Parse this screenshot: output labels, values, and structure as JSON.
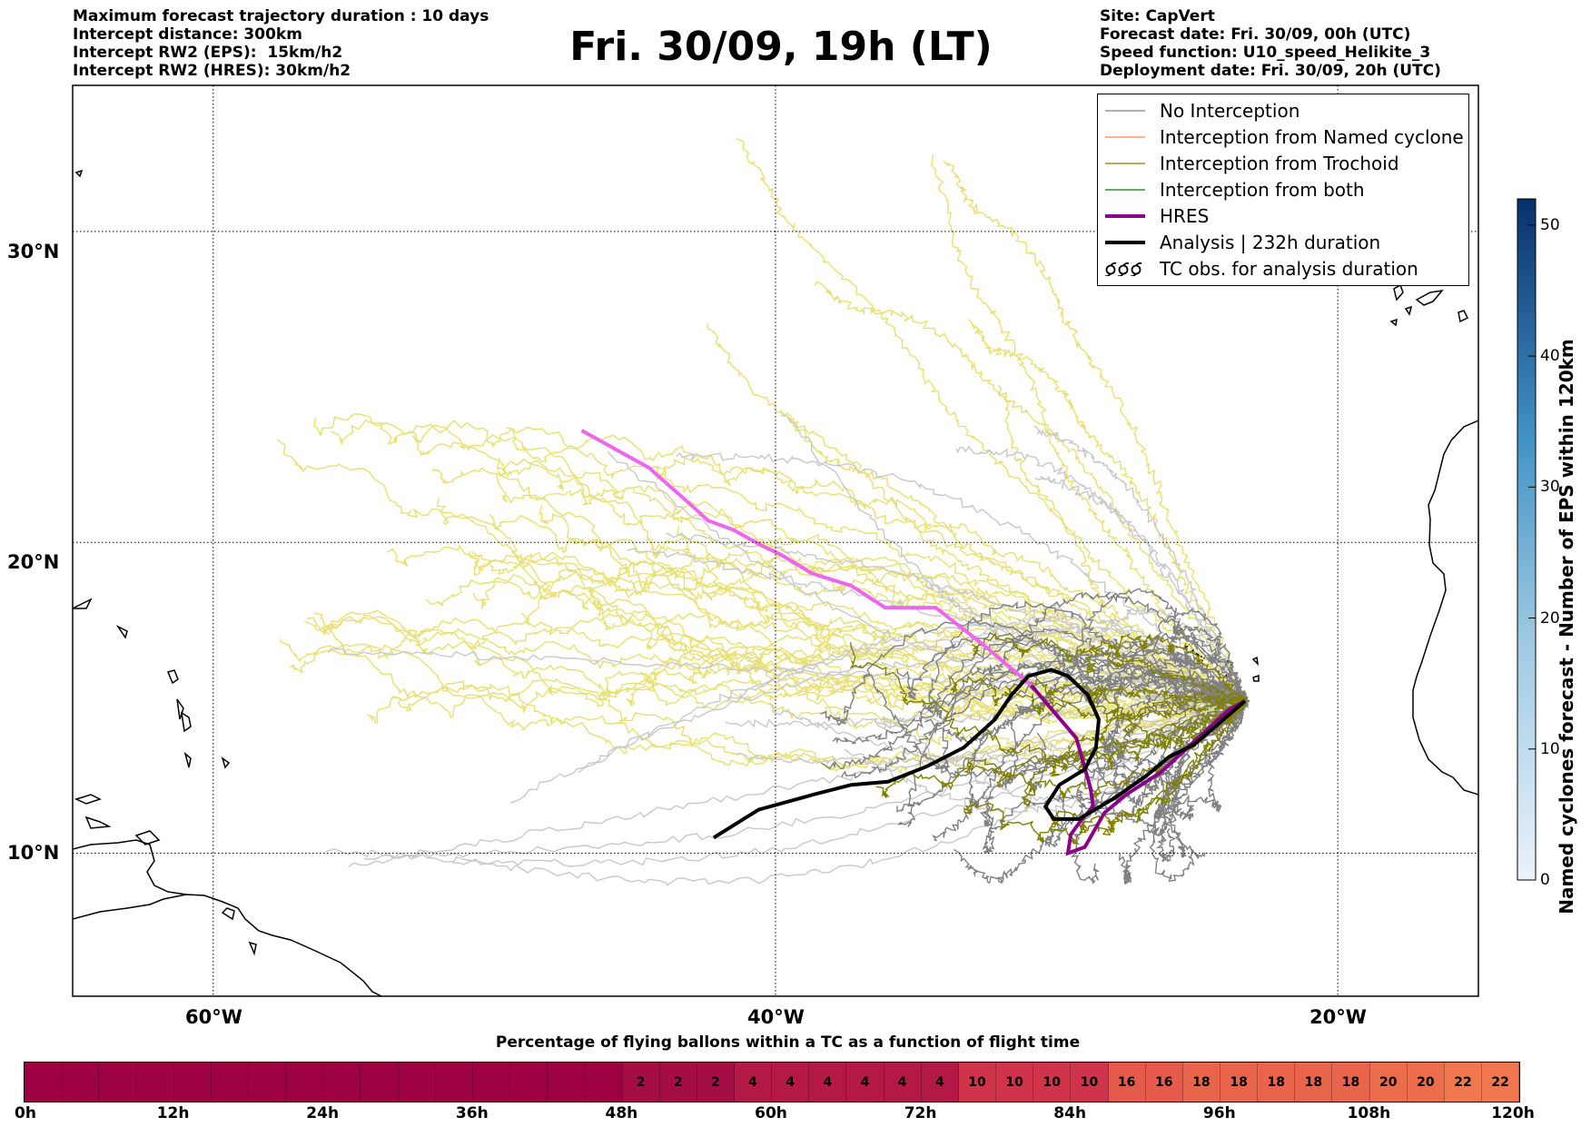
{
  "header_left": [
    "Maximum forecast trajectory duration : 10 days",
    "Intercept distance: 300km",
    "Intercept RW2 (EPS):  15km/h2",
    "Intercept RW2 (HRES): 30km/h2"
  ],
  "header_right": [
    "Site: CapVert",
    "Forecast date: Fri. 30/09, 00h (UTC)",
    "Speed function: U10_speed_Helikite_3",
    "Deployment date: Fri. 30/09, 20h (UTC)"
  ],
  "title": "Fri. 30/09, 19h (LT)",
  "map": {
    "lat_labels": [
      "30°N",
      "20°N",
      "10°N"
    ],
    "lon_labels": [
      "60°W",
      "40°W",
      "20°W"
    ],
    "lon_range": [
      -65,
      -15
    ],
    "lat_range": [
      5.4,
      34.7
    ],
    "gridlines": true,
    "site": {
      "name": "CapVert",
      "lon": -23.3,
      "lat": 14.9
    },
    "colors": {
      "no_interception": "#808080",
      "named_cyclone": "#ff7f50",
      "trochoid": "#808000",
      "both": "#008000",
      "hres": "#8b008b",
      "analysis": "#000000",
      "faded_yellow": "#e8e070",
      "faded_gray": "#c8c8c8",
      "hres_light": "#ee66ee"
    },
    "hres_track": [
      [
        -46.9,
        23.6
      ],
      [
        -44.5,
        22.4
      ],
      [
        -43.0,
        21.2
      ],
      [
        -42.4,
        20.7
      ],
      [
        -41.5,
        20.4
      ],
      [
        -40.5,
        19.9
      ],
      [
        -39.8,
        19.6
      ],
      [
        -38.7,
        19.0
      ],
      [
        -37.3,
        18.6
      ],
      [
        -36.1,
        17.9
      ],
      [
        -34.3,
        17.9
      ],
      [
        -32.6,
        16.7
      ],
      [
        -30.9,
        15.4
      ],
      [
        -29.3,
        13.7
      ],
      [
        -28.8,
        12.1
      ],
      [
        -28.7,
        11.5
      ],
      [
        -29.1,
        11.1
      ],
      [
        -29.5,
        10.6
      ],
      [
        -29.6,
        10.0
      ],
      [
        -29.0,
        10.2
      ],
      [
        -28.3,
        11.3
      ],
      [
        -27.5,
        11.9
      ],
      [
        -26.3,
        12.6
      ],
      [
        -25.1,
        13.6
      ],
      [
        -23.9,
        14.6
      ],
      [
        -23.3,
        14.9
      ]
    ],
    "analysis_track": [
      [
        -42.2,
        10.5
      ],
      [
        -40.6,
        11.4
      ],
      [
        -38.6,
        11.9
      ],
      [
        -37.3,
        12.2
      ],
      [
        -36.0,
        12.3
      ],
      [
        -34.6,
        12.8
      ],
      [
        -33.3,
        13.4
      ],
      [
        -32.2,
        14.3
      ],
      [
        -31.6,
        15.1
      ],
      [
        -31.0,
        15.7
      ],
      [
        -30.2,
        15.9
      ],
      [
        -29.6,
        15.7
      ],
      [
        -28.9,
        15.1
      ],
      [
        -28.5,
        14.3
      ],
      [
        -28.6,
        13.4
      ],
      [
        -29.0,
        12.7
      ],
      [
        -29.9,
        12.2
      ],
      [
        -30.4,
        11.5
      ],
      [
        -30.1,
        11.1
      ],
      [
        -29.2,
        11.1
      ],
      [
        -27.9,
        11.8
      ],
      [
        -26.8,
        12.5
      ],
      [
        -26.0,
        13.1
      ],
      [
        -25.1,
        13.5
      ],
      [
        -24.2,
        14.2
      ],
      [
        -23.3,
        14.9
      ]
    ]
  },
  "legend": [
    {
      "label": "No Interception",
      "color": "#808080",
      "width": 1.2,
      "style": "line"
    },
    {
      "label": "Interception from Named cyclone",
      "color": "#ff7f50",
      "width": 1.2,
      "style": "line"
    },
    {
      "label": "Interception from Trochoid",
      "color": "#808000",
      "width": 1.2,
      "style": "line"
    },
    {
      "label": "Interception from both",
      "color": "#008000",
      "width": 1.2,
      "style": "line"
    },
    {
      "label": "HRES",
      "color": "#8b008b",
      "width": 4,
      "style": "line"
    },
    {
      "label": "Analysis | 232h duration",
      "color": "#000000",
      "width": 4,
      "style": "line"
    },
    {
      "label": "TC obs. for analysis duration",
      "color": "#000000",
      "width": 1.5,
      "style": "tc-symbol"
    }
  ],
  "colorbar": {
    "label": "Named cyclones forecast - Number of EPS within 120km",
    "ticks": [
      "0",
      "10",
      "20",
      "30",
      "40",
      "50"
    ],
    "range": [
      0,
      52
    ],
    "color_low": "#e8f0f8",
    "color_high": "#08306b"
  },
  "time_bar": {
    "title": "Percentage of flying ballons within a TC as a function of flight time",
    "cells": [
      "",
      "",
      "",
      "",
      "",
      "",
      "",
      "",
      "",
      "",
      "",
      "",
      "",
      "",
      "",
      "",
      "2",
      "2",
      "2",
      "4",
      "4",
      "4",
      "4",
      "4",
      "4",
      "10",
      "10",
      "10",
      "10",
      "16",
      "16",
      "18",
      "18",
      "18",
      "18",
      "18",
      "20",
      "20",
      "22",
      "22"
    ],
    "cell_colors": [
      "#9e0142",
      "#9e0142",
      "#9e0142",
      "#9e0142",
      "#9e0142",
      "#9e0142",
      "#9e0142",
      "#9e0142",
      "#9e0142",
      "#9e0142",
      "#9e0142",
      "#9e0142",
      "#9e0142",
      "#9e0142",
      "#9e0142",
      "#9e0142",
      "#a50d45",
      "#a50d45",
      "#a50d45",
      "#b41845",
      "#b41845",
      "#b41845",
      "#b41845",
      "#b41845",
      "#b41845",
      "#d0344a",
      "#d0344a",
      "#d0344a",
      "#d0344a",
      "#e55a4a",
      "#e55a4a",
      "#e8644b",
      "#e8644b",
      "#e8644b",
      "#e8644b",
      "#e8644b",
      "#ec6c4c",
      "#ec6c4c",
      "#f0774e",
      "#f0774e"
    ],
    "labels": [
      "0h",
      "12h",
      "24h",
      "36h",
      "48h",
      "60h",
      "72h",
      "84h",
      "96h",
      "108h",
      "120h"
    ]
  }
}
